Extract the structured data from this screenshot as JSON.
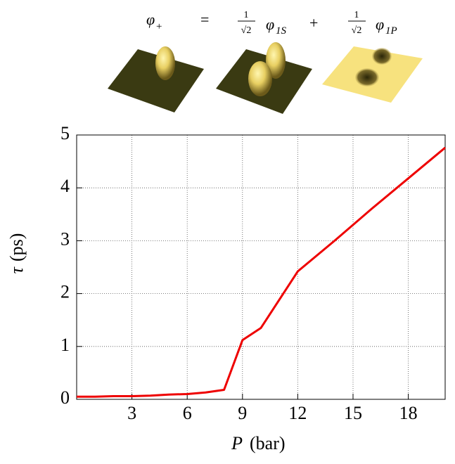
{
  "header": {
    "equation": {
      "lhs_symbol": "φ",
      "lhs_subscript": "+",
      "equals": "=",
      "numerator_1": "1",
      "denominator_1": "√2",
      "term_1_symbol": "φ",
      "term_1_subscript": "1S",
      "plus": "+",
      "numerator_2": "1",
      "denominator_2": "√2",
      "term_2_symbol": "φ",
      "term_2_subscript": "1P"
    }
  },
  "chart_data": {
    "type": "line",
    "x_label": {
      "symbol": "P",
      "unit": "(bar)"
    },
    "y_label": {
      "symbol": "τ",
      "unit": "(ps)"
    },
    "x": [
      0,
      1,
      2,
      3,
      4,
      5,
      6,
      7,
      8,
      9,
      10,
      12,
      14,
      16,
      18,
      20
    ],
    "values": [
      0.05,
      0.05,
      0.06,
      0.06,
      0.07,
      0.09,
      0.1,
      0.13,
      0.18,
      1.12,
      1.35,
      2.42,
      3.0,
      3.6,
      4.18,
      4.76
    ],
    "color": "#ee0000",
    "xlim": [
      0,
      20
    ],
    "ylim": [
      0,
      5
    ],
    "xticks": [
      3,
      6,
      9,
      12,
      15,
      18
    ],
    "yticks": [
      0,
      1,
      2,
      3,
      4,
      5
    ],
    "grid": true
  }
}
